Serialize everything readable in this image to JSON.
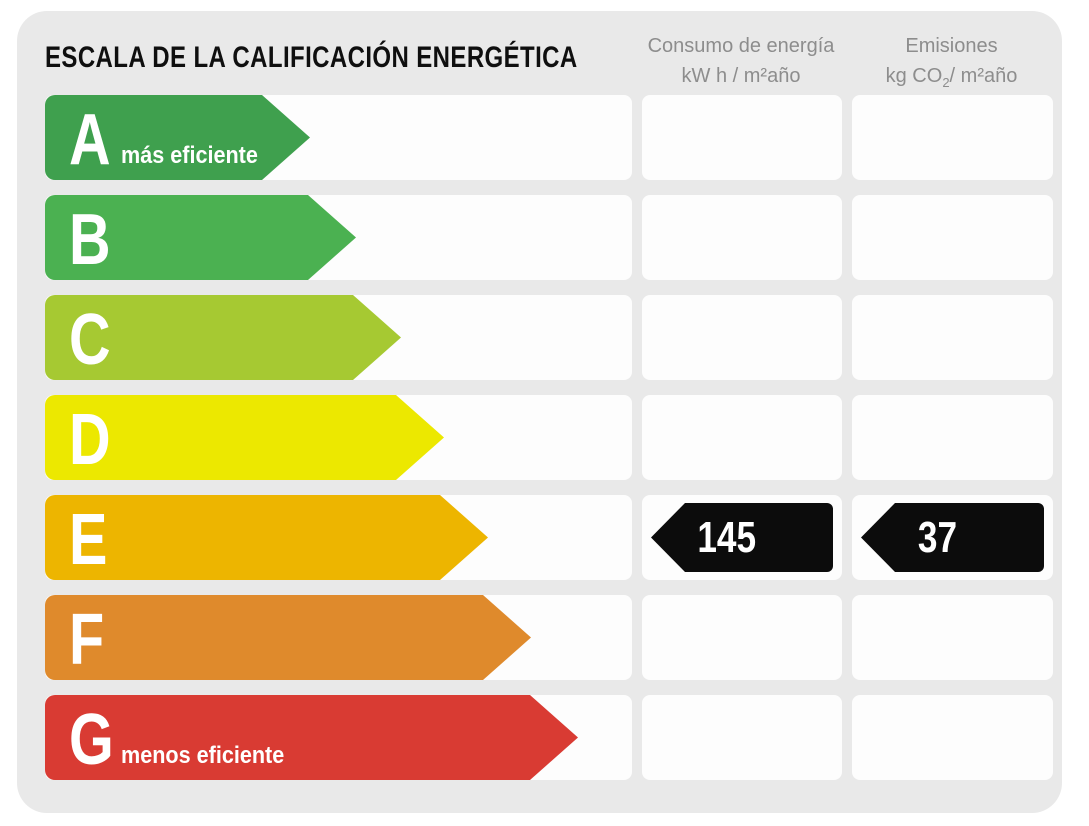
{
  "title": "ESCALA DE LA CALIFICACIÓN ENERGÉTICA",
  "columns": {
    "consumption": {
      "label": "Consumo de energía",
      "unit": "kW h / m²año"
    },
    "emissions": {
      "label": "Emisiones",
      "unit_prefix": "kg CO",
      "unit_sub": "2",
      "unit_suffix": "/ m²año"
    }
  },
  "scale": {
    "rows": [
      {
        "letter": "A",
        "note": "más eficiente",
        "color": "#3fa04e"
      },
      {
        "letter": "B",
        "color": "#4bb151"
      },
      {
        "letter": "C",
        "color": "#a6c932"
      },
      {
        "letter": "D",
        "color": "#ece800"
      },
      {
        "letter": "E",
        "color": "#edb500"
      },
      {
        "letter": "F",
        "color": "#df8a2c"
      },
      {
        "letter": "G",
        "note": "menos eficiente",
        "color": "#d93b33"
      }
    ]
  },
  "values": {
    "rating": "E",
    "consumption": "145",
    "emissions": "37",
    "marker_color": "#0c0c0c"
  },
  "chart_data": {
    "type": "bar",
    "title": "ESCALA DE LA CALIFICACIÓN ENERGÉTICA",
    "categories": [
      "A",
      "B",
      "C",
      "D",
      "E",
      "F",
      "G"
    ],
    "category_notes": {
      "A": "más eficiente",
      "G": "menos eficiente"
    },
    "bar_colors": [
      "#3fa04e",
      "#4bb151",
      "#a6c932",
      "#ece800",
      "#edb500",
      "#df8a2c",
      "#d93b33"
    ],
    "bar_lengths_relative": [
      1.0,
      1.17,
      1.34,
      1.51,
      1.67,
      1.83,
      2.01
    ],
    "columns": [
      "Consumo de energía kW h / m²año",
      "Emisiones kg CO2 / m²año"
    ],
    "annotations": [
      {
        "category": "E",
        "column": "Consumo de energía kW h / m²año",
        "value": 145
      },
      {
        "category": "E",
        "column": "Emisiones kg CO2 / m²año",
        "value": 37
      }
    ],
    "legend_position": "none",
    "grid": false
  }
}
